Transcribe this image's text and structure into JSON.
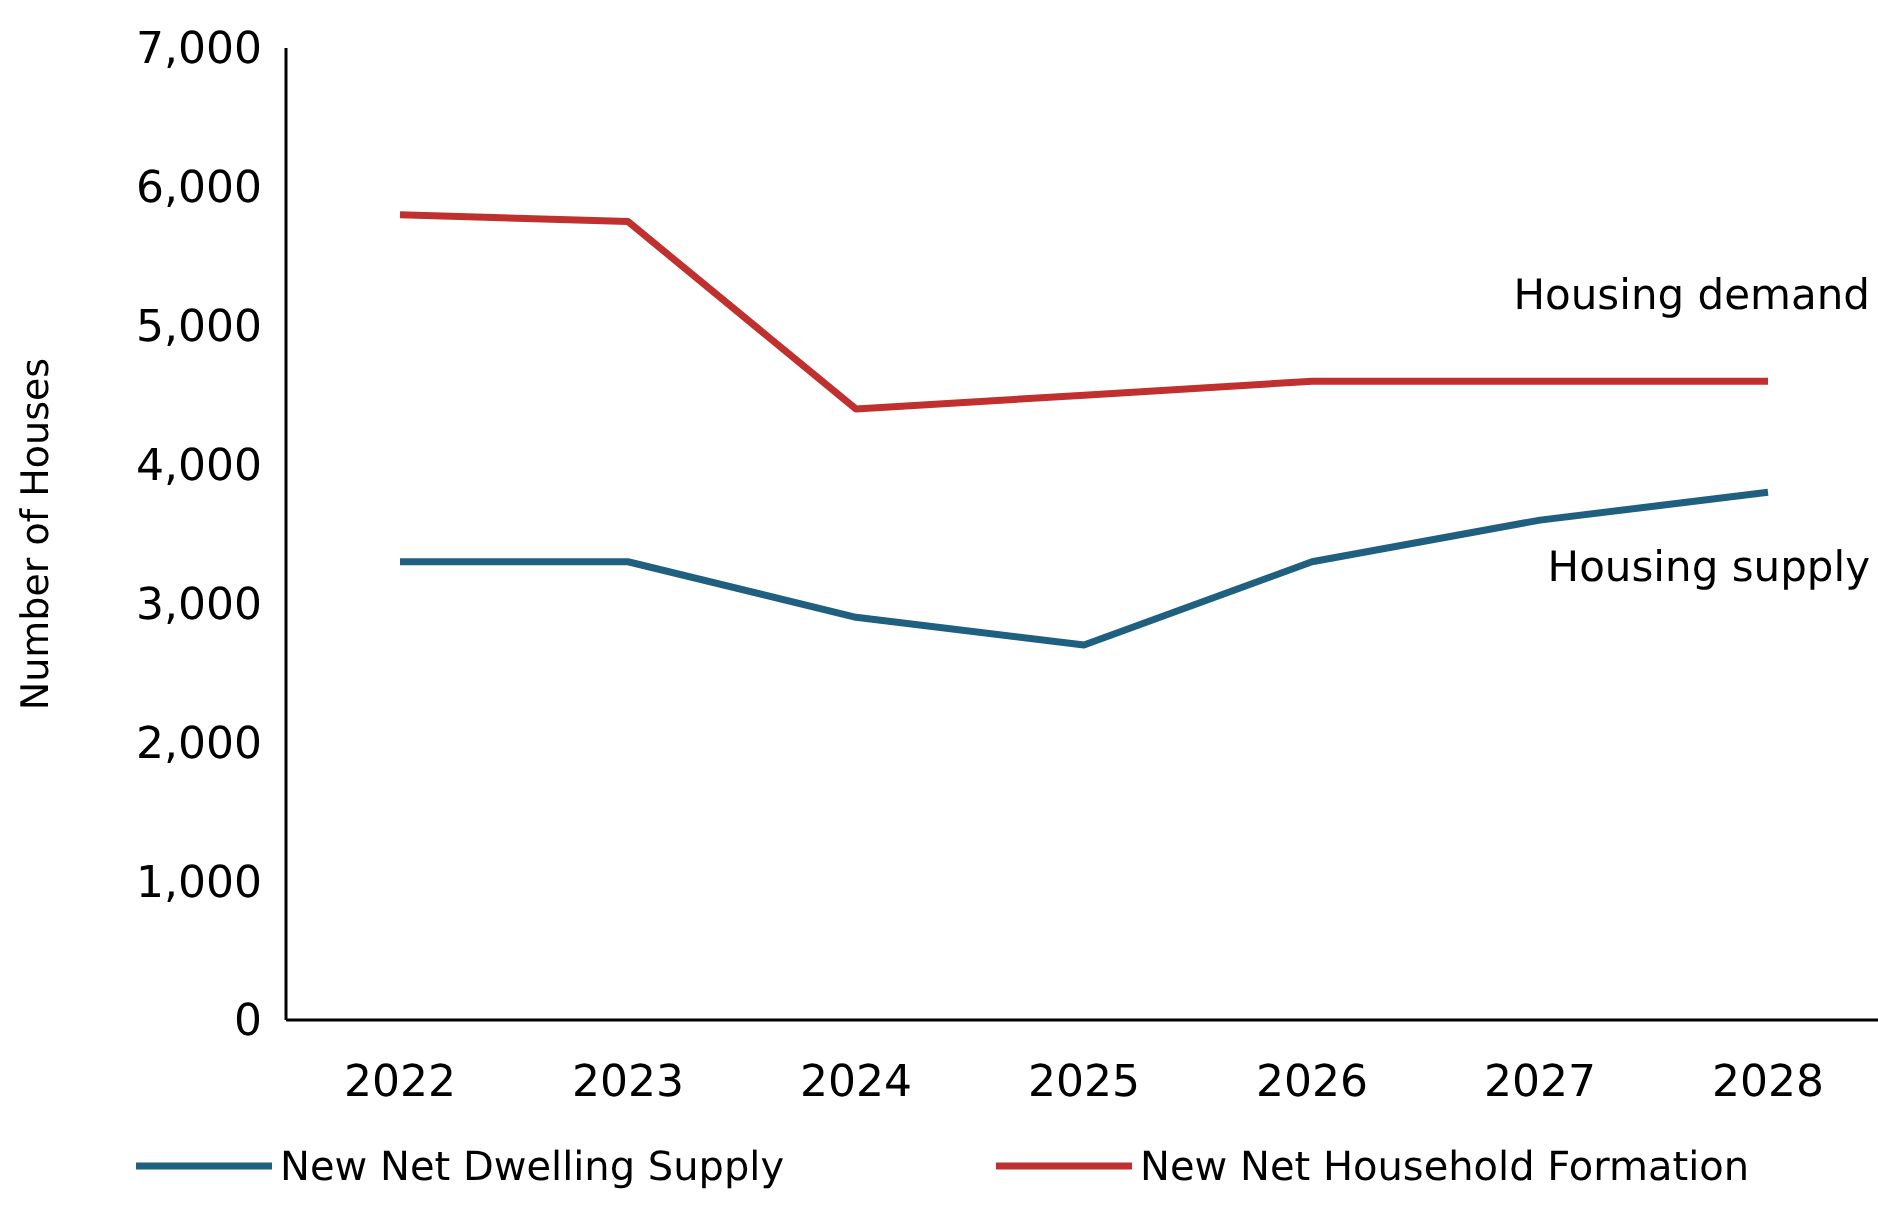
{
  "chart_data": {
    "type": "line",
    "ylabel": "Number of Houses",
    "categories": [
      "2022",
      "2023",
      "2024",
      "2025",
      "2026",
      "2027",
      "2028"
    ],
    "series": [
      {
        "name": "New Net Dwelling Supply",
        "color": "#1f5f7f",
        "values": [
          3300,
          3300,
          2900,
          2700,
          3300,
          3600,
          3800
        ]
      },
      {
        "name": "New Net Household Formation",
        "color": "#c0302e",
        "values": [
          5800,
          5750,
          4400,
          4500,
          4600,
          4600,
          4600
        ]
      }
    ],
    "ylim": [
      0,
      7000
    ],
    "yticks": [
      {
        "value": 0,
        "label": "0"
      },
      {
        "value": 1000,
        "label": "1,000"
      },
      {
        "value": 2000,
        "label": "2,000"
      },
      {
        "value": 3000,
        "label": "3,000"
      },
      {
        "value": 4000,
        "label": "4,000"
      },
      {
        "value": 5000,
        "label": "5,000"
      },
      {
        "value": 6000,
        "label": "6,000"
      },
      {
        "value": 7000,
        "label": "7,000"
      }
    ],
    "annotations": [
      "Housing demand",
      "Housing supply"
    ],
    "grid": false,
    "legend": "bottom"
  }
}
